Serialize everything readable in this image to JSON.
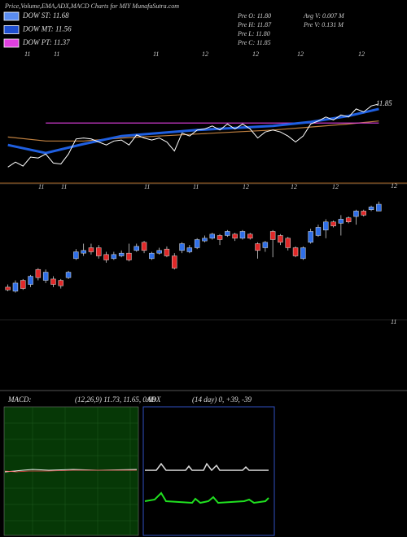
{
  "header": {
    "title": "Price,Volume,EMA,ADX,MACD Charts for MIY MunafaSutra.com",
    "legend": [
      {
        "label": "DOW ST: 11.68",
        "color": "#5a8cf0"
      },
      {
        "label": "DOW MT: 11.56",
        "color": "#1f4fd0"
      },
      {
        "label": "DOW PT: 11.37",
        "color": "#e040e0"
      }
    ],
    "stats": [
      "Pre  O: 11.80",
      "Pre  H: 11.87",
      "Pre  L: 11.80",
      "Pre  C: 11.85"
    ],
    "stats2": [
      "Avg V: 0.007 M",
      "Pre  V: 0.131 M"
    ]
  },
  "chart_data": {
    "type": "candlestick",
    "open": [
      11.24,
      11.21,
      11.29,
      11.26,
      11.37,
      11.29,
      11.3,
      11.29,
      11.31,
      11.45,
      11.49,
      11.53,
      11.53,
      11.48,
      11.45,
      11.47,
      11.49,
      11.51,
      11.57,
      11.45,
      11.49,
      11.52,
      11.47,
      11.51,
      11.5,
      11.53,
      11.58,
      11.6,
      11.62,
      11.62,
      11.63,
      11.6,
      11.63,
      11.56,
      11.53,
      11.65,
      11.62,
      11.6,
      11.53,
      11.45,
      11.57,
      11.62,
      11.66,
      11.72,
      11.71,
      11.75,
      11.76,
      11.8,
      11.81,
      11.8
    ],
    "high": [
      11.26,
      11.29,
      11.3,
      11.33,
      11.38,
      11.37,
      11.32,
      11.3,
      11.36,
      11.52,
      11.56,
      11.56,
      11.55,
      11.5,
      11.5,
      11.51,
      11.56,
      11.56,
      11.58,
      11.5,
      11.53,
      11.54,
      11.49,
      11.57,
      11.55,
      11.6,
      11.62,
      11.64,
      11.63,
      11.66,
      11.64,
      11.66,
      11.64,
      11.57,
      11.58,
      11.66,
      11.63,
      11.61,
      11.54,
      11.54,
      11.67,
      11.7,
      11.74,
      11.73,
      11.77,
      11.76,
      11.81,
      11.81,
      11.84,
      11.87
    ],
    "low": [
      11.21,
      11.2,
      11.22,
      11.24,
      11.29,
      11.27,
      11.24,
      11.23,
      11.3,
      11.44,
      11.47,
      11.48,
      11.45,
      11.42,
      11.44,
      11.46,
      11.43,
      11.5,
      11.49,
      11.44,
      11.48,
      11.46,
      11.37,
      11.49,
      11.49,
      11.52,
      11.57,
      11.59,
      11.55,
      11.61,
      11.58,
      11.59,
      11.59,
      11.45,
      11.5,
      11.46,
      11.55,
      11.51,
      11.46,
      11.44,
      11.56,
      11.61,
      11.6,
      11.68,
      11.62,
      11.71,
      11.7,
      11.76,
      11.8,
      11.8
    ],
    "close": [
      11.22,
      11.27,
      11.23,
      11.32,
      11.31,
      11.35,
      11.26,
      11.25,
      11.35,
      11.5,
      11.51,
      11.5,
      11.47,
      11.44,
      11.48,
      11.49,
      11.44,
      11.54,
      11.51,
      11.49,
      11.51,
      11.47,
      11.38,
      11.56,
      11.53,
      11.59,
      11.6,
      11.63,
      11.59,
      11.65,
      11.6,
      11.65,
      11.6,
      11.51,
      11.57,
      11.59,
      11.57,
      11.53,
      11.47,
      11.53,
      11.65,
      11.68,
      11.72,
      11.69,
      11.74,
      11.72,
      11.8,
      11.77,
      11.83,
      11.85
    ],
    "up_color": "#2f6fe8",
    "down_color": "#e02828",
    "ylim": [
      11,
      12
    ],
    "yticks": [
      11,
      12
    ],
    "date_labels": [
      "11",
      "11",
      "11",
      "11",
      "12",
      "12",
      "12"
    ],
    "price_panel": {
      "type": "line",
      "ylim": [
        11.06,
        12.36
      ],
      "date_labels": [
        "11",
        "11",
        "11",
        "12",
        "12",
        "12",
        "12"
      ],
      "price_color": "#ffffff",
      "x": [
        0,
        5,
        10,
        15,
        20,
        25,
        30,
        35,
        40,
        45,
        49
      ],
      "series": [
        {
          "color": "#c08040",
          "values": [
            11.52,
            11.48,
            11.48,
            11.51,
            11.53,
            11.55,
            11.57,
            11.59,
            11.62,
            11.65,
            11.68
          ]
        },
        {
          "color": "#e040e0",
          "values": [
            null,
            11.66,
            11.66,
            11.66,
            11.66,
            11.66,
            11.66,
            11.66,
            11.66,
            11.66,
            11.66
          ]
        },
        {
          "color": "#1f5fe0",
          "values": [
            11.44,
            11.36,
            11.45,
            11.53,
            11.56,
            11.59,
            11.61,
            11.63,
            11.67,
            11.73,
            11.8
          ]
        }
      ]
    },
    "macd": {
      "label": "MACD:",
      "params": "(12,26,9) 11.73, 11.65, 0.08"
    },
    "adx": {
      "label": "ADX",
      "params": "(14 day) 0, +39, -39"
    }
  }
}
